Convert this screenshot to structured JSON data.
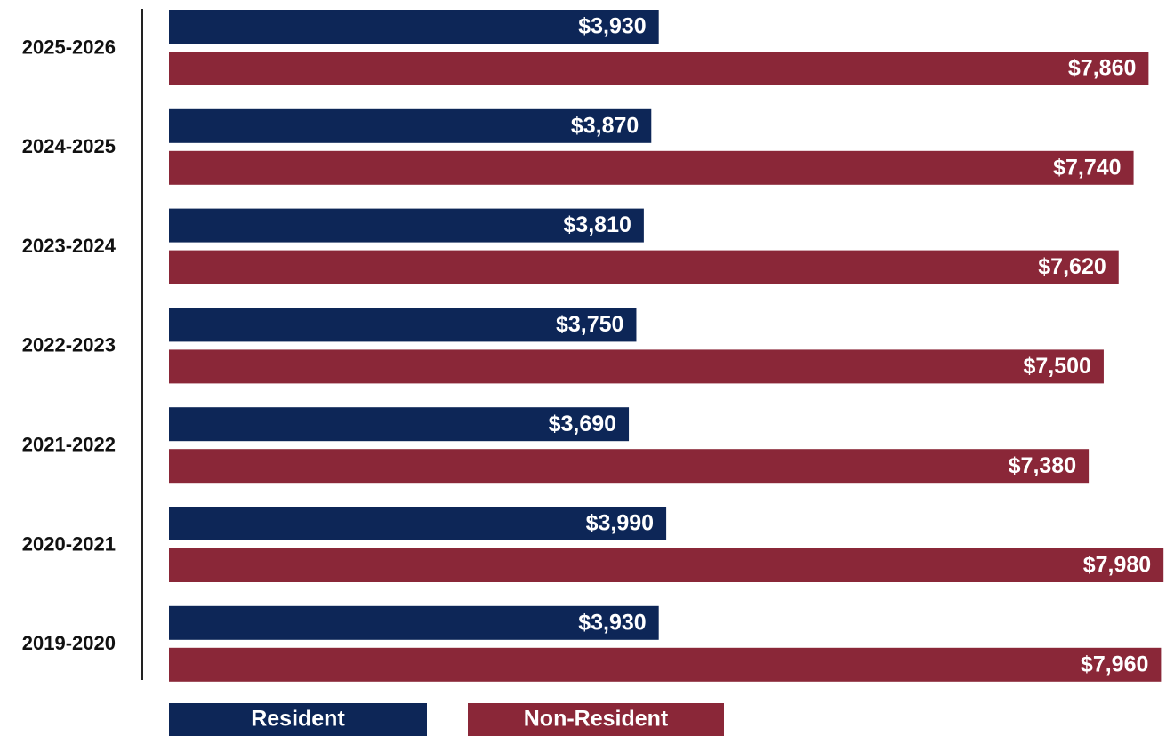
{
  "chart_data": {
    "type": "bar",
    "orientation": "horizontal",
    "categories": [
      "2025-2026",
      "2024-2025",
      "2023-2024",
      "2022-2023",
      "2021-2022",
      "2020-2021",
      "2019-2020"
    ],
    "series": [
      {
        "name": "Resident",
        "color": "#0d2657",
        "values": [
          3930,
          3870,
          3810,
          3750,
          3690,
          3990,
          3930
        ],
        "value_labels": [
          "$3,930",
          "$3,870",
          "$3,810",
          "$3,750",
          "$3,690",
          "$3,990",
          "$3,930"
        ]
      },
      {
        "name": "Non-Resident",
        "color": "#8a2738",
        "values": [
          7860,
          7740,
          7620,
          7500,
          7380,
          7980,
          7960
        ],
        "value_labels": [
          "$7,860",
          "$7,740",
          "$7,620",
          "$7,500",
          "$7,380",
          "$7,980",
          "$7,960"
        ]
      }
    ],
    "xlim": [
      0,
      8000
    ],
    "legend": "bottom"
  }
}
